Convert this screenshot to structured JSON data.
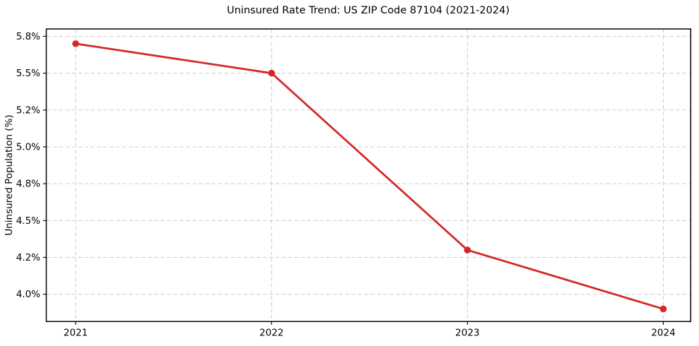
{
  "chart_data": {
    "type": "line",
    "title": "Uninsured Rate Trend: US ZIP Code 87104 (2021-2024)",
    "ylabel": "Uninsured Population (%)",
    "xlabel": "",
    "x": [
      2021,
      2022,
      2023,
      2024
    ],
    "x_tick_labels": [
      "2021",
      "2022",
      "2023",
      "2024"
    ],
    "series": [
      {
        "name": "Uninsured rate",
        "values": [
          5.7,
          5.5,
          4.3,
          3.9
        ]
      }
    ],
    "y_ticks": [
      {
        "value": 4.0,
        "label": "4.0%"
      },
      {
        "value": 4.25,
        "label": "4.2%"
      },
      {
        "value": 4.5,
        "label": "4.5%"
      },
      {
        "value": 4.75,
        "label": "4.8%"
      },
      {
        "value": 5.0,
        "label": "5.0%"
      },
      {
        "value": 5.25,
        "label": "5.2%"
      },
      {
        "value": 5.5,
        "label": "5.5%"
      },
      {
        "value": 5.75,
        "label": "5.8%"
      }
    ],
    "xlim": [
      2020.85,
      2024.14
    ],
    "ylim": [
      3.815,
      5.8
    ],
    "grid": true,
    "grid_style": "dashed",
    "legend_position": "none",
    "colors": {
      "line": "#d62728",
      "marker": "#d62728",
      "grid": "#cccccc",
      "spine": "#000000",
      "text": "#000000",
      "background": "#ffffff"
    }
  }
}
